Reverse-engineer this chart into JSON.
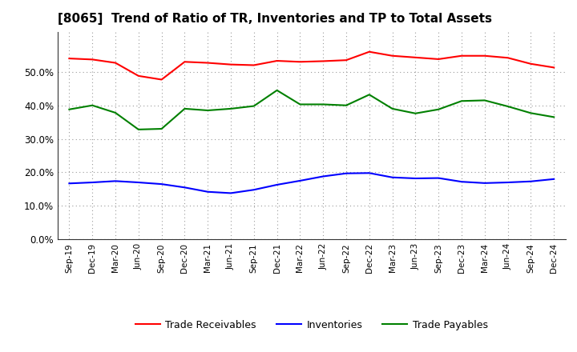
{
  "title": "[8065]  Trend of Ratio of TR, Inventories and TP to Total Assets",
  "x_labels": [
    "Sep-19",
    "Dec-19",
    "Mar-20",
    "Jun-20",
    "Sep-20",
    "Dec-20",
    "Mar-21",
    "Jun-21",
    "Sep-21",
    "Dec-21",
    "Mar-22",
    "Jun-22",
    "Sep-22",
    "Dec-22",
    "Mar-23",
    "Jun-23",
    "Sep-23",
    "Dec-23",
    "Mar-24",
    "Jun-24",
    "Sep-24",
    "Dec-24"
  ],
  "trade_receivables": [
    0.54,
    0.537,
    0.527,
    0.488,
    0.477,
    0.53,
    0.527,
    0.522,
    0.52,
    0.533,
    0.53,
    0.532,
    0.535,
    0.56,
    0.548,
    0.543,
    0.538,
    0.548,
    0.548,
    0.542,
    0.524,
    0.513
  ],
  "inventories": [
    0.167,
    0.17,
    0.174,
    0.17,
    0.165,
    0.155,
    0.142,
    0.138,
    0.148,
    0.163,
    0.175,
    0.188,
    0.197,
    0.198,
    0.185,
    0.182,
    0.183,
    0.172,
    0.168,
    0.17,
    0.173,
    0.18
  ],
  "trade_payables": [
    0.388,
    0.4,
    0.378,
    0.328,
    0.33,
    0.39,
    0.385,
    0.39,
    0.398,
    0.445,
    0.403,
    0.403,
    0.4,
    0.432,
    0.39,
    0.376,
    0.388,
    0.413,
    0.415,
    0.397,
    0.377,
    0.365
  ],
  "tr_color": "#ff0000",
  "inv_color": "#0000ff",
  "tp_color": "#008000",
  "ylim": [
    0.0,
    0.62
  ],
  "yticks": [
    0.0,
    0.1,
    0.2,
    0.3,
    0.4,
    0.5
  ],
  "background_color": "#ffffff",
  "grid_color": "#999999",
  "title_fontsize": 11,
  "legend_labels": [
    "Trade Receivables",
    "Inventories",
    "Trade Payables"
  ]
}
